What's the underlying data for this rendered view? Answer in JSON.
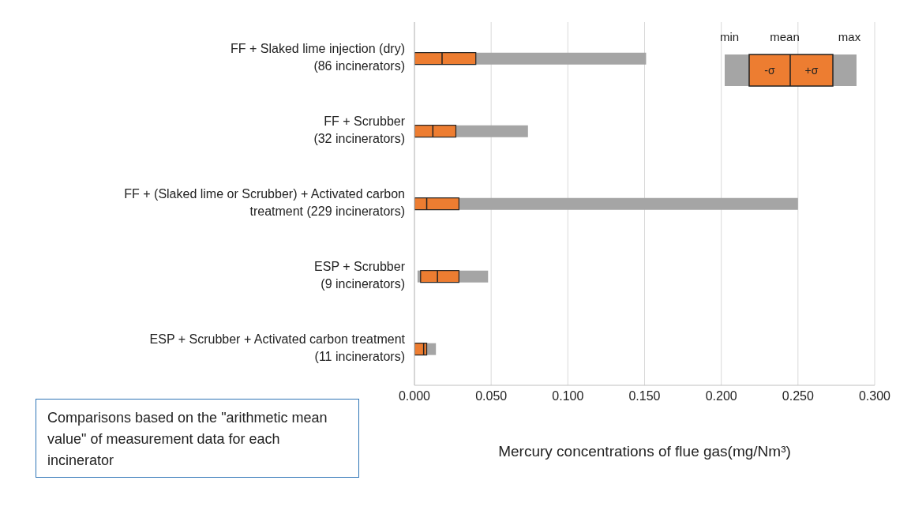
{
  "chart_data": {
    "type": "box",
    "orientation": "horizontal",
    "categories": [
      "FF + Slaked lime injection (dry)\n(86 incinerators)",
      "FF + Scrubber\n(32 incinerators)",
      "FF + (Slaked lime or Scrubber) + Activated carbon\ntreatment (229 incinerators)",
      "ESP + Scrubber\n(9 incinerators)",
      "ESP + Scrubber + Activated carbon treatment\n(11 incinerators)"
    ],
    "color": "#a5a5a5",
    "series": [
      {
        "color": "#ed7d31",
        "boxes": [
          {
            "low": 0,
            "q1": 0,
            "median": 0.018,
            "q3": 0.04,
            "high": 0.151
          },
          {
            "low": 0,
            "q1": 0,
            "median": 0.012,
            "q3": 0.027,
            "high": 0.074
          },
          {
            "low": 0,
            "q1": 0,
            "median": 0.008,
            "q3": 0.029,
            "high": 0.25
          },
          {
            "low": 0.002,
            "q1": 0.004,
            "median": 0.015,
            "q3": 0.029,
            "high": 0.048
          },
          {
            "low": 0,
            "q1": 0,
            "median": 0.006,
            "q3": 0.008,
            "high": 0.014
          }
        ]
      }
    ],
    "xlim": [
      0,
      0.3
    ],
    "xticks": [
      {
        "value": 0,
        "label": "0.000"
      },
      {
        "value": 0.05,
        "label": "0.050"
      },
      {
        "value": 0.1,
        "label": "0.100"
      },
      {
        "value": 0.15,
        "label": "0.150"
      },
      {
        "value": 0.2,
        "label": "0.200"
      },
      {
        "value": 0.25,
        "label": "0.250"
      },
      {
        "value": 0.3,
        "label": "0.300"
      }
    ],
    "xlabel": "Mercury concentrations of flue gas(mg/Nm³)",
    "grid": "x",
    "annotations": [
      "min",
      "mean",
      "max",
      "-σ",
      "+σ",
      "Comparisons based on the \"arithmetic mean value\" of measurement data for each incinerator"
    ]
  }
}
